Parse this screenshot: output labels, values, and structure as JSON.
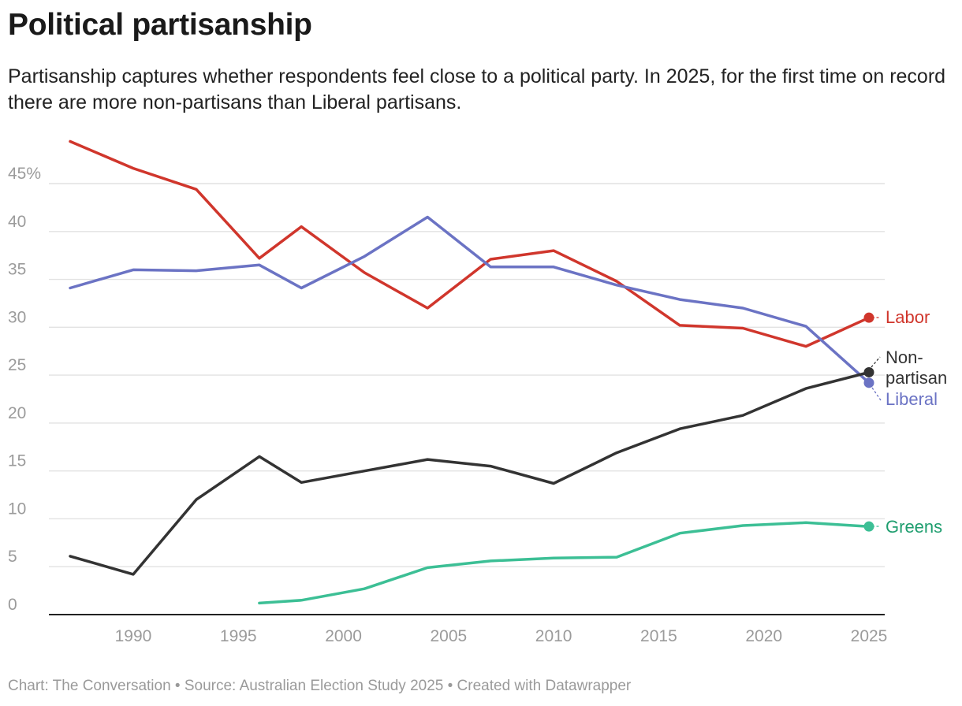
{
  "header": {
    "title": "Political partisanship",
    "subtitle": "Partisanship captures whether respondents feel close to a political party. In 2025, for the first time on record there are more non-partisans than Liberal partisans."
  },
  "footer": {
    "credit": "Chart: The Conversation • Source: Australian Election Study 2025 • Created with Datawrapper"
  },
  "chart_data": {
    "type": "line",
    "title": "Political partisanship",
    "xlabel": "",
    "ylabel": "",
    "xlim": [
      1987,
      2025
    ],
    "ylim": [
      0,
      45
    ],
    "grid": true,
    "x_ticks": [
      1990,
      1995,
      2000,
      2005,
      2010,
      2015,
      2020,
      2025
    ],
    "y_ticks": [
      {
        "value": 0,
        "label": "0"
      },
      {
        "value": 5,
        "label": "5"
      },
      {
        "value": 10,
        "label": "10"
      },
      {
        "value": 15,
        "label": "15"
      },
      {
        "value": 20,
        "label": "20"
      },
      {
        "value": 25,
        "label": "25"
      },
      {
        "value": 30,
        "label": "30"
      },
      {
        "value": 35,
        "label": "35"
      },
      {
        "value": 40,
        "label": "40"
      },
      {
        "value": 45,
        "label": "45%"
      }
    ],
    "series": [
      {
        "name": "Labor",
        "label_lines": [
          "Labor"
        ],
        "color": "#d0362c",
        "x": [
          1987,
          1990,
          1993,
          1996,
          1998,
          2001,
          2004,
          2007,
          2010,
          2013,
          2016,
          2019,
          2022,
          2025
        ],
        "values": [
          49.4,
          46.6,
          44.4,
          37.2,
          40.5,
          35.7,
          32.0,
          37.1,
          38.0,
          34.8,
          30.2,
          29.9,
          28.0,
          31.0
        ]
      },
      {
        "name": "Liberal",
        "label_lines": [
          "Liberal"
        ],
        "color": "#6b73c4",
        "x": [
          1987,
          1990,
          1993,
          1996,
          1998,
          2001,
          2004,
          2007,
          2010,
          2013,
          2016,
          2019,
          2022,
          2025
        ],
        "values": [
          34.1,
          36.0,
          35.9,
          36.5,
          34.1,
          37.4,
          41.5,
          36.3,
          36.3,
          34.4,
          32.9,
          32.0,
          30.1,
          24.2
        ]
      },
      {
        "name": "Non-partisan",
        "label_lines": [
          "Non-",
          "partisan"
        ],
        "color": "#333333",
        "x": [
          1987,
          1990,
          1993,
          1996,
          1998,
          2001,
          2004,
          2007,
          2010,
          2013,
          2016,
          2019,
          2022,
          2025
        ],
        "values": [
          6.1,
          4.2,
          12.0,
          16.5,
          13.8,
          15.0,
          16.2,
          15.5,
          13.7,
          16.9,
          19.4,
          20.8,
          23.6,
          25.3
        ]
      },
      {
        "name": "Greens",
        "label_lines": [
          "Greens"
        ],
        "color": "#3cbf95",
        "label_color": "#1f9e6f",
        "x": [
          1996,
          1998,
          2001,
          2004,
          2007,
          2010,
          2013,
          2016,
          2019,
          2022,
          2025
        ],
        "values": [
          1.2,
          1.5,
          2.7,
          4.9,
          5.6,
          5.9,
          6.0,
          8.5,
          9.3,
          9.6,
          9.2
        ]
      }
    ]
  }
}
